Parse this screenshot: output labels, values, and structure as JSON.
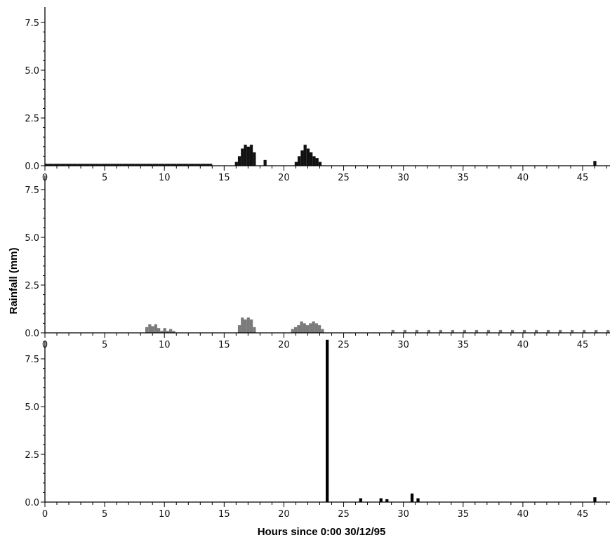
{
  "chart_data": {
    "type": "bar",
    "xlabel": "Hours since 0:00 30/12/95",
    "ylabel": "Rainfall (mm)",
    "xlim": [
      0,
      48
    ],
    "ylim": [
      0,
      8.5
    ],
    "x_ticks": [
      "0",
      "5",
      "10",
      "15",
      "20",
      "25",
      "30",
      "35",
      "40",
      "45"
    ],
    "y_ticks": [
      "0.0",
      "2.5",
      "5.0",
      "7.5"
    ],
    "bar_width": 0.25,
    "panels": [
      {
        "color": "#111111",
        "values": [
          {
            "x": 0.0,
            "y": 0.1
          },
          {
            "x": 0.25,
            "y": 0.1
          },
          {
            "x": 0.5,
            "y": 0.1
          },
          {
            "x": 0.75,
            "y": 0.1
          },
          {
            "x": 1.0,
            "y": 0.1
          },
          {
            "x": 1.25,
            "y": 0.1
          },
          {
            "x": 1.5,
            "y": 0.1
          },
          {
            "x": 1.75,
            "y": 0.1
          },
          {
            "x": 2.0,
            "y": 0.1
          },
          {
            "x": 2.25,
            "y": 0.1
          },
          {
            "x": 2.5,
            "y": 0.1
          },
          {
            "x": 2.75,
            "y": 0.1
          },
          {
            "x": 3.0,
            "y": 0.1
          },
          {
            "x": 3.25,
            "y": 0.1
          },
          {
            "x": 3.5,
            "y": 0.1
          },
          {
            "x": 3.75,
            "y": 0.1
          },
          {
            "x": 4.0,
            "y": 0.1
          },
          {
            "x": 4.25,
            "y": 0.1
          },
          {
            "x": 4.5,
            "y": 0.1
          },
          {
            "x": 4.75,
            "y": 0.1
          },
          {
            "x": 5.0,
            "y": 0.1
          },
          {
            "x": 5.25,
            "y": 0.1
          },
          {
            "x": 5.5,
            "y": 0.1
          },
          {
            "x": 5.75,
            "y": 0.1
          },
          {
            "x": 6.0,
            "y": 0.1
          },
          {
            "x": 6.25,
            "y": 0.1
          },
          {
            "x": 6.5,
            "y": 0.1
          },
          {
            "x": 6.75,
            "y": 0.1
          },
          {
            "x": 7.0,
            "y": 0.1
          },
          {
            "x": 7.25,
            "y": 0.1
          },
          {
            "x": 7.5,
            "y": 0.1
          },
          {
            "x": 7.75,
            "y": 0.1
          },
          {
            "x": 8.0,
            "y": 0.1
          },
          {
            "x": 8.25,
            "y": 0.1
          },
          {
            "x": 8.5,
            "y": 0.1
          },
          {
            "x": 8.75,
            "y": 0.1
          },
          {
            "x": 9.0,
            "y": 0.1
          },
          {
            "x": 9.25,
            "y": 0.1
          },
          {
            "x": 9.5,
            "y": 0.1
          },
          {
            "x": 9.75,
            "y": 0.1
          },
          {
            "x": 10.0,
            "y": 0.1
          },
          {
            "x": 10.25,
            "y": 0.1
          },
          {
            "x": 10.5,
            "y": 0.1
          },
          {
            "x": 10.75,
            "y": 0.1
          },
          {
            "x": 11.0,
            "y": 0.1
          },
          {
            "x": 11.25,
            "y": 0.1
          },
          {
            "x": 11.5,
            "y": 0.1
          },
          {
            "x": 11.75,
            "y": 0.1
          },
          {
            "x": 12.0,
            "y": 0.1
          },
          {
            "x": 12.25,
            "y": 0.1
          },
          {
            "x": 12.5,
            "y": 0.1
          },
          {
            "x": 12.75,
            "y": 0.1
          },
          {
            "x": 13.0,
            "y": 0.1
          },
          {
            "x": 13.25,
            "y": 0.1
          },
          {
            "x": 13.5,
            "y": 0.1
          },
          {
            "x": 13.75,
            "y": 0.1
          },
          {
            "x": 15.9,
            "y": 0.2
          },
          {
            "x": 16.15,
            "y": 0.5
          },
          {
            "x": 16.4,
            "y": 0.9
          },
          {
            "x": 16.65,
            "y": 1.1
          },
          {
            "x": 16.9,
            "y": 1.0
          },
          {
            "x": 17.15,
            "y": 1.1
          },
          {
            "x": 17.4,
            "y": 0.7
          },
          {
            "x": 18.3,
            "y": 0.3
          },
          {
            "x": 20.9,
            "y": 0.2
          },
          {
            "x": 21.15,
            "y": 0.5
          },
          {
            "x": 21.4,
            "y": 0.8
          },
          {
            "x": 21.65,
            "y": 1.1
          },
          {
            "x": 21.9,
            "y": 0.9
          },
          {
            "x": 22.15,
            "y": 0.7
          },
          {
            "x": 22.4,
            "y": 0.5
          },
          {
            "x": 22.65,
            "y": 0.4
          },
          {
            "x": 22.9,
            "y": 0.2
          },
          {
            "x": 45.9,
            "y": 0.25
          }
        ]
      },
      {
        "color": "#7a7a7a",
        "values": [
          {
            "x": 8.4,
            "y": 0.3
          },
          {
            "x": 8.65,
            "y": 0.45
          },
          {
            "x": 8.9,
            "y": 0.35
          },
          {
            "x": 9.15,
            "y": 0.45
          },
          {
            "x": 9.4,
            "y": 0.25
          },
          {
            "x": 9.65,
            "y": 0.1
          },
          {
            "x": 9.9,
            "y": 0.25
          },
          {
            "x": 10.15,
            "y": 0.1
          },
          {
            "x": 10.4,
            "y": 0.2
          },
          {
            "x": 10.65,
            "y": 0.1
          },
          {
            "x": 16.15,
            "y": 0.4
          },
          {
            "x": 16.4,
            "y": 0.8
          },
          {
            "x": 16.65,
            "y": 0.7
          },
          {
            "x": 16.9,
            "y": 0.8
          },
          {
            "x": 17.15,
            "y": 0.7
          },
          {
            "x": 17.4,
            "y": 0.3
          },
          {
            "x": 20.6,
            "y": 0.2
          },
          {
            "x": 20.85,
            "y": 0.3
          },
          {
            "x": 21.1,
            "y": 0.4
          },
          {
            "x": 21.35,
            "y": 0.6
          },
          {
            "x": 21.6,
            "y": 0.5
          },
          {
            "x": 21.85,
            "y": 0.4
          },
          {
            "x": 22.1,
            "y": 0.5
          },
          {
            "x": 22.35,
            "y": 0.6
          },
          {
            "x": 22.6,
            "y": 0.5
          },
          {
            "x": 22.85,
            "y": 0.4
          },
          {
            "x": 23.1,
            "y": 0.2
          },
          {
            "x": 29.0,
            "y": 0.15
          },
          {
            "x": 30.0,
            "y": 0.15
          },
          {
            "x": 31.0,
            "y": 0.15
          },
          {
            "x": 32.0,
            "y": 0.15
          },
          {
            "x": 33.0,
            "y": 0.15
          },
          {
            "x": 34.0,
            "y": 0.15
          },
          {
            "x": 35.0,
            "y": 0.15
          },
          {
            "x": 36.0,
            "y": 0.15
          },
          {
            "x": 37.0,
            "y": 0.15
          },
          {
            "x": 38.0,
            "y": 0.15
          },
          {
            "x": 39.0,
            "y": 0.15
          },
          {
            "x": 40.0,
            "y": 0.15
          },
          {
            "x": 41.0,
            "y": 0.15
          },
          {
            "x": 42.0,
            "y": 0.15
          },
          {
            "x": 43.0,
            "y": 0.15
          },
          {
            "x": 44.0,
            "y": 0.15
          },
          {
            "x": 45.0,
            "y": 0.15
          },
          {
            "x": 46.0,
            "y": 0.15
          },
          {
            "x": 47.0,
            "y": 0.15
          }
        ]
      },
      {
        "color": "#000000",
        "values": [
          {
            "x": 23.5,
            "y": 8.5
          },
          {
            "x": 26.3,
            "y": 0.2
          },
          {
            "x": 28.0,
            "y": 0.2
          },
          {
            "x": 28.5,
            "y": 0.15
          },
          {
            "x": 30.6,
            "y": 0.45
          },
          {
            "x": 31.1,
            "y": 0.2
          },
          {
            "x": 45.9,
            "y": 0.25
          }
        ]
      }
    ]
  }
}
